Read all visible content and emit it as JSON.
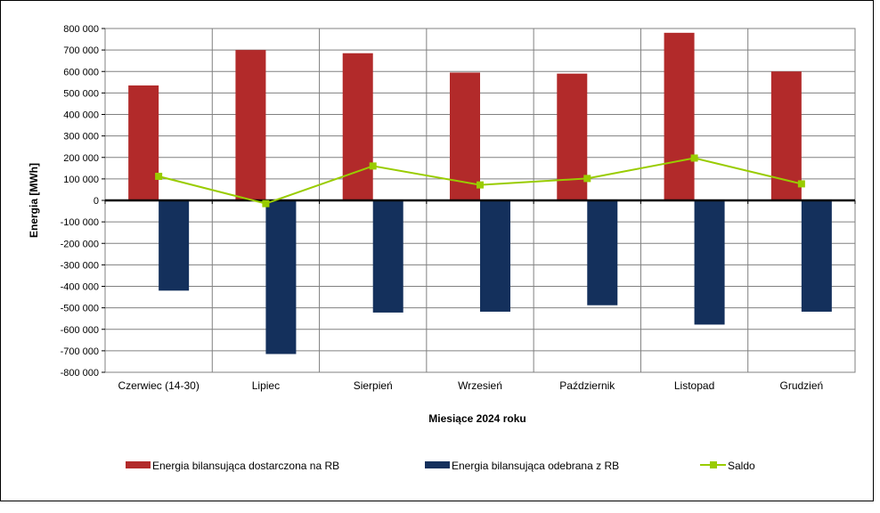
{
  "chart_data": {
    "type": "bar",
    "title": "",
    "xlabel": "Miesiące 2024  roku",
    "ylabel": "Energia [MWh]",
    "ylim": [
      -800000,
      800000
    ],
    "ytick_step": 100000,
    "yticks": [
      "800 000",
      "700 000",
      "600 000",
      "500 000",
      "400 000",
      "300 000",
      "200 000",
      "100 000",
      "0",
      "-100 000",
      "-200 000",
      "-300 000",
      "-400 000",
      "-500 000",
      "-600 000",
      "-700 000",
      "-800 000"
    ],
    "categories": [
      "Czerwiec (14-30)",
      "Lipiec",
      "Sierpień",
      "Wrzesień",
      "Październik",
      "Listopad",
      "Grudzień"
    ],
    "series": [
      {
        "name": "Energia bilansująca dostarczona na RB",
        "kind": "bar",
        "color": "#b22a2a",
        "values": [
          535000,
          700000,
          685000,
          595000,
          590000,
          780000,
          600000
        ]
      },
      {
        "name": "Energia bilansująca odebrana z RB",
        "kind": "bar",
        "color": "#14305c",
        "values": [
          -420000,
          -715000,
          -522000,
          -518000,
          -488000,
          -578000,
          -518000
        ]
      },
      {
        "name": "Saldo",
        "kind": "line",
        "color": "#99cc00",
        "values": [
          112000,
          -15000,
          160000,
          72000,
          102000,
          197000,
          77000
        ]
      }
    ],
    "grid": true,
    "legend_position": "bottom"
  }
}
